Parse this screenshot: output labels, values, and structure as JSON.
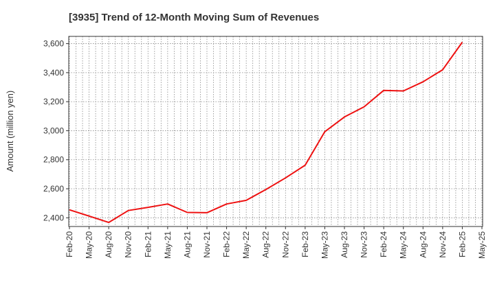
{
  "chart_data": {
    "type": "line",
    "title": "[3935]  Trend of 12-Month Moving Sum of Revenues",
    "xlabel": "",
    "ylabel": "Amount (million yen)",
    "ylim": [
      2340,
      3650
    ],
    "yticks": [
      2400,
      2600,
      2800,
      3000,
      3200,
      3400,
      3600
    ],
    "ytick_labels": [
      "2,400",
      "2,600",
      "2,800",
      "3,000",
      "3,200",
      "3,400",
      "3,600"
    ],
    "categories": [
      "Feb-20",
      "May-20",
      "Aug-20",
      "Nov-20",
      "Feb-21",
      "May-21",
      "Aug-21",
      "Nov-21",
      "Feb-22",
      "May-22",
      "Aug-22",
      "Nov-22",
      "Feb-23",
      "May-23",
      "Aug-23",
      "Nov-23",
      "Feb-24",
      "May-24",
      "Aug-24",
      "Nov-24",
      "Feb-25",
      "May-25"
    ],
    "grid": true,
    "series": [
      {
        "color": "#ee1111",
        "values": [
          2455,
          2412,
          2368,
          2450,
          2472,
          2495,
          2437,
          2435,
          2495,
          2520,
          2595,
          2675,
          2763,
          2993,
          3095,
          3165,
          3278,
          3274,
          3337,
          3420,
          3610,
          null
        ]
      }
    ]
  }
}
